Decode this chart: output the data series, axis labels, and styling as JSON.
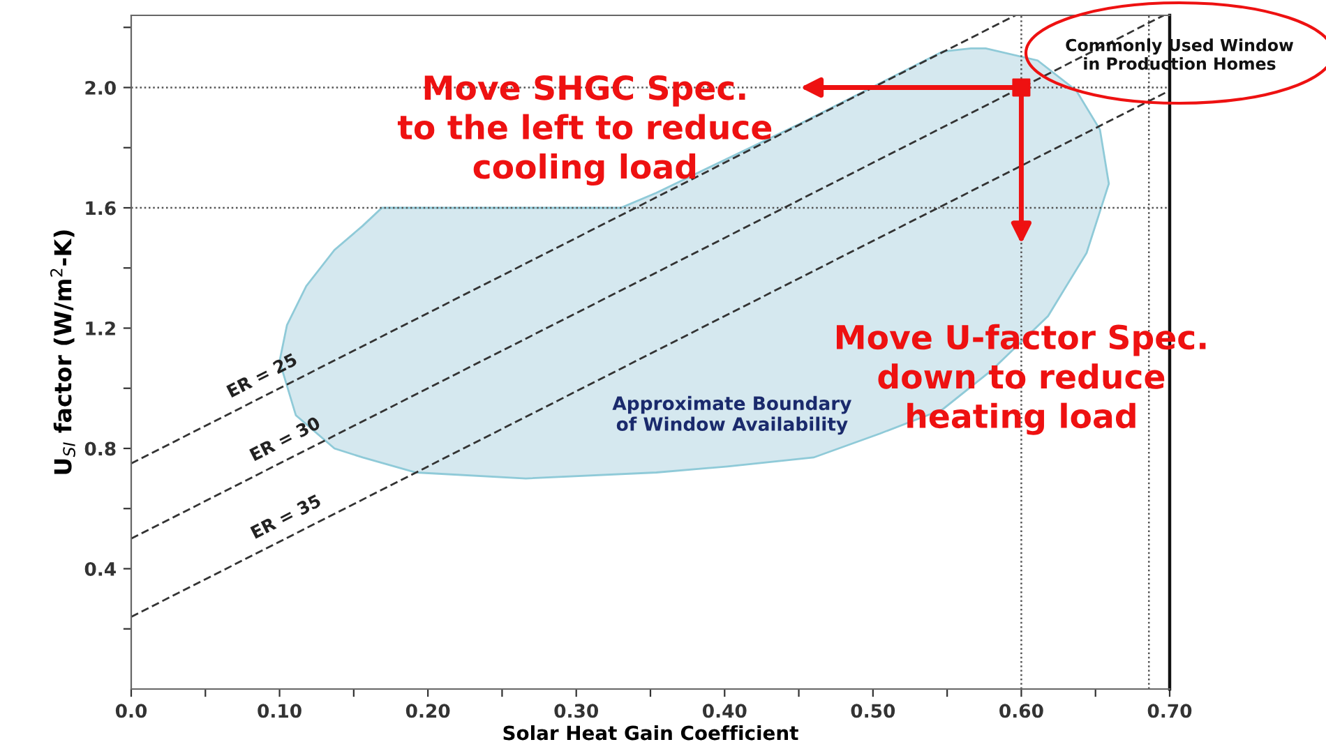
{
  "chart_data": {
    "type": "line",
    "xlabel": "Solar Heat Gain Coefficient",
    "ylabel": "U$_{SI}$ factor (W/m$^{2}$-K)",
    "xlim": [
      0,
      0.7
    ],
    "ylim": [
      0,
      2.24
    ],
    "xticks": [
      {
        "value": 0,
        "label": "0.0"
      },
      {
        "value": 0.05,
        "label": null
      },
      {
        "value": 0.1,
        "label": "0.10"
      },
      {
        "value": 0.15,
        "label": null
      },
      {
        "value": 0.2,
        "label": "0.20"
      },
      {
        "value": 0.25,
        "label": null
      },
      {
        "value": 0.3,
        "label": "0.30"
      },
      {
        "value": 0.35,
        "label": null
      },
      {
        "value": 0.4,
        "label": "0.40"
      },
      {
        "value": 0.45,
        "label": null
      },
      {
        "value": 0.5,
        "label": "0.50"
      },
      {
        "value": 0.55,
        "label": null
      },
      {
        "value": 0.6,
        "label": "0.60"
      },
      {
        "value": 0.65,
        "label": null
      },
      {
        "value": 0.7,
        "label": "0.70"
      }
    ],
    "yticks": [
      {
        "value": 0.2,
        "label": null
      },
      {
        "value": 0.4,
        "label": "0.4"
      },
      {
        "value": 0.6,
        "label": null
      },
      {
        "value": 0.8,
        "label": "0.8"
      },
      {
        "value": 1.0,
        "label": null
      },
      {
        "value": 1.2,
        "label": "1.2"
      },
      {
        "value": 1.4,
        "label": null
      },
      {
        "value": 1.6,
        "label": "1.6"
      },
      {
        "value": 1.8,
        "label": null
      },
      {
        "value": 2.0,
        "label": "2.0"
      },
      {
        "value": 2.2,
        "label": null
      }
    ],
    "grid": false,
    "series": [
      {
        "type": "area",
        "color": "#d5e8ef",
        "x": [
          0.169,
          0.33,
          0.354,
          0.451,
          0.547,
          0.566,
          0.576,
          0.611,
          0.637,
          0.653,
          0.659,
          0.644,
          0.618,
          0.58,
          0.547,
          0.505,
          0.46,
          0.402,
          0.354,
          0.266,
          0.192,
          0.156,
          0.137,
          0.111,
          0.1,
          0.105,
          0.118,
          0.137,
          0.156
        ],
        "values": [
          1.6,
          1.6,
          1.65,
          1.88,
          2.12,
          2.13,
          2.13,
          2.09,
          1.99,
          1.86,
          1.68,
          1.45,
          1.24,
          1.06,
          0.93,
          0.85,
          0.77,
          0.74,
          0.72,
          0.7,
          0.72,
          0.77,
          0.8,
          0.91,
          1.09,
          1.21,
          1.34,
          1.46,
          1.54
        ]
      },
      {
        "name": "ER = 25",
        "color": "#333333",
        "line_style": "dashed",
        "x": [
          0,
          0.596
        ],
        "values": [
          0.75,
          2.24
        ]
      },
      {
        "name": "ER = 30",
        "color": "#333333",
        "line_style": "dashed",
        "x": [
          0,
          0.696
        ],
        "values": [
          0.5,
          2.24
        ]
      },
      {
        "name": "ER = 35",
        "color": "#333333",
        "line_style": "dashed",
        "x": [
          0,
          0.7
        ],
        "values": [
          0.24,
          1.99
        ]
      },
      {
        "type": "scatter",
        "color": "#ee1111",
        "marker": "square",
        "x": [
          0.6
        ],
        "values": [
          2.0
        ]
      }
    ],
    "ref_lines": [
      {
        "axis": "y",
        "value": 2.0,
        "color": "#555555",
        "line_style": "dotted"
      },
      {
        "axis": "y",
        "value": 1.6,
        "color": "#555555",
        "line_style": "dotted"
      },
      {
        "axis": "x",
        "value": 0.6,
        "color": "#555555",
        "line_style": "dotted"
      },
      {
        "axis": "x",
        "value": 0.686,
        "color": "#555555",
        "line_style": "dotted"
      }
    ],
    "annotations": [
      {
        "text": "Move SHGC Spec.\nto the left to reduce\ncooling load",
        "x": 0.451,
        "y": 2.0
      },
      {
        "text": "Move U-factor Spec.\ndown to reduce\nheating load",
        "x": 0.6,
        "y": 1.48
      },
      "Approximate Boundary\nof Window Availability",
      "Commonly Used Window\nin Production Homes"
    ]
  }
}
